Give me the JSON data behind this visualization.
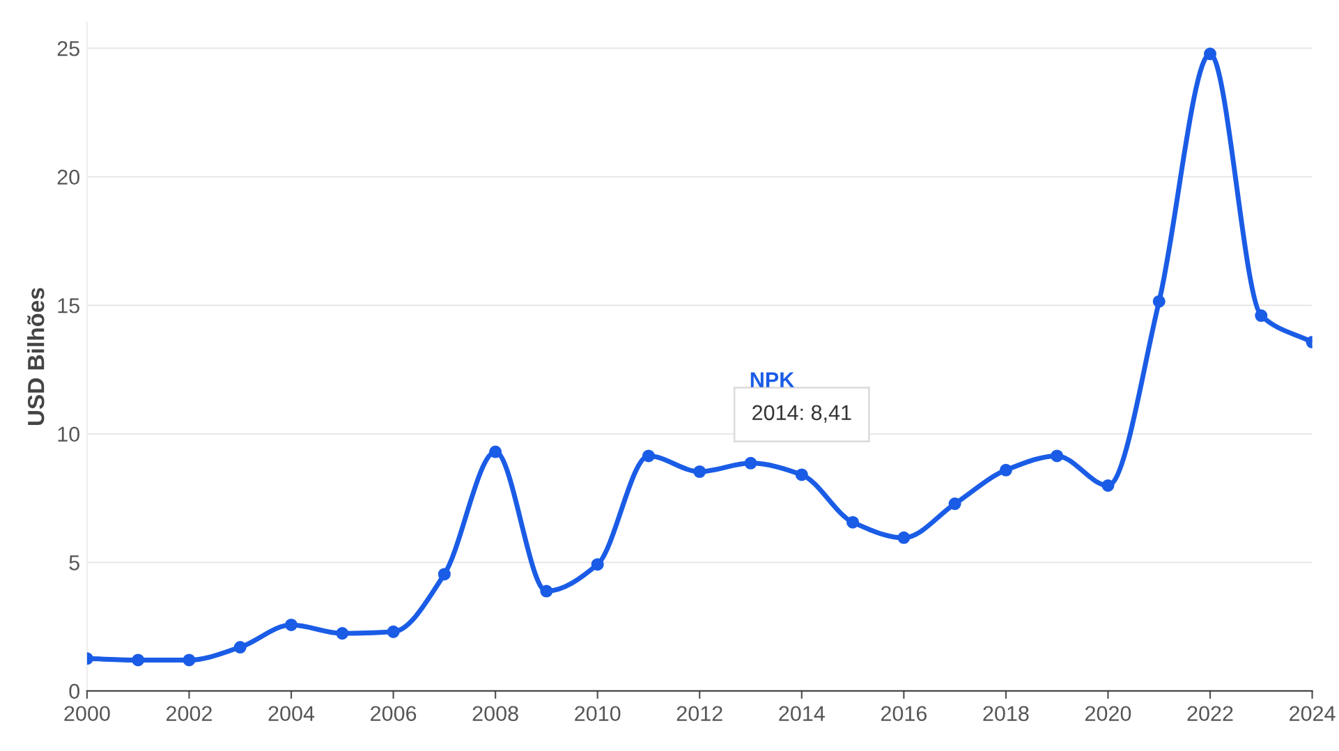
{
  "chart_data": {
    "type": "line",
    "ylabel": "USD Bilhões",
    "x": [
      2000,
      2001,
      2002,
      2003,
      2004,
      2005,
      2006,
      2007,
      2008,
      2009,
      2010,
      2011,
      2012,
      2013,
      2014,
      2015,
      2016,
      2017,
      2018,
      2019,
      2020,
      2021,
      2022,
      2023,
      2024
    ],
    "series": [
      {
        "name": "NPK",
        "color": "#1a5ce6",
        "values": [
          1.26,
          1.2,
          1.2,
          1.7,
          2.57,
          2.24,
          2.3,
          4.54,
          9.3,
          3.88,
          4.92,
          9.14,
          8.53,
          8.86,
          8.41,
          6.56,
          5.96,
          7.28,
          8.59,
          9.14,
          7.99,
          15.15,
          24.78,
          14.6,
          13.57
        ]
      }
    ],
    "annotations": [
      {
        "text": "2014: 8,41",
        "x": 2014,
        "y": 8.41
      }
    ],
    "xlim": [
      2000,
      2024
    ],
    "xticks": [
      2000,
      2002,
      2004,
      2006,
      2008,
      2010,
      2012,
      2014,
      2016,
      2018,
      2020,
      2022,
      2024
    ],
    "ylim": [
      0,
      26
    ],
    "yticks": [
      0,
      5,
      10,
      15,
      20,
      25
    ],
    "grid": "y",
    "marker": "circle",
    "line_style": "solid",
    "legend": false
  }
}
